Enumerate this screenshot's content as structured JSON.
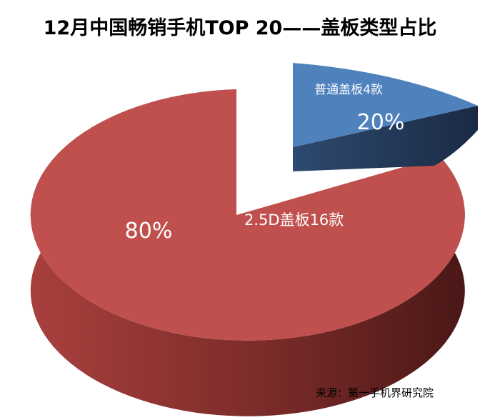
{
  "chart_data": {
    "type": "pie",
    "title": "12月中国畅销手机TOP 20——盖板类型占比",
    "slices": [
      {
        "label": "普通盖板4款",
        "count": 4,
        "percent": "20%",
        "value": 20,
        "color": "#4F81BD",
        "exploded": true
      },
      {
        "label": "2.5D盖板16款",
        "count": 16,
        "percent": "80%",
        "value": 80,
        "color": "#C0504D",
        "exploded": false
      }
    ],
    "source": "来源：第一手机界研究院"
  }
}
